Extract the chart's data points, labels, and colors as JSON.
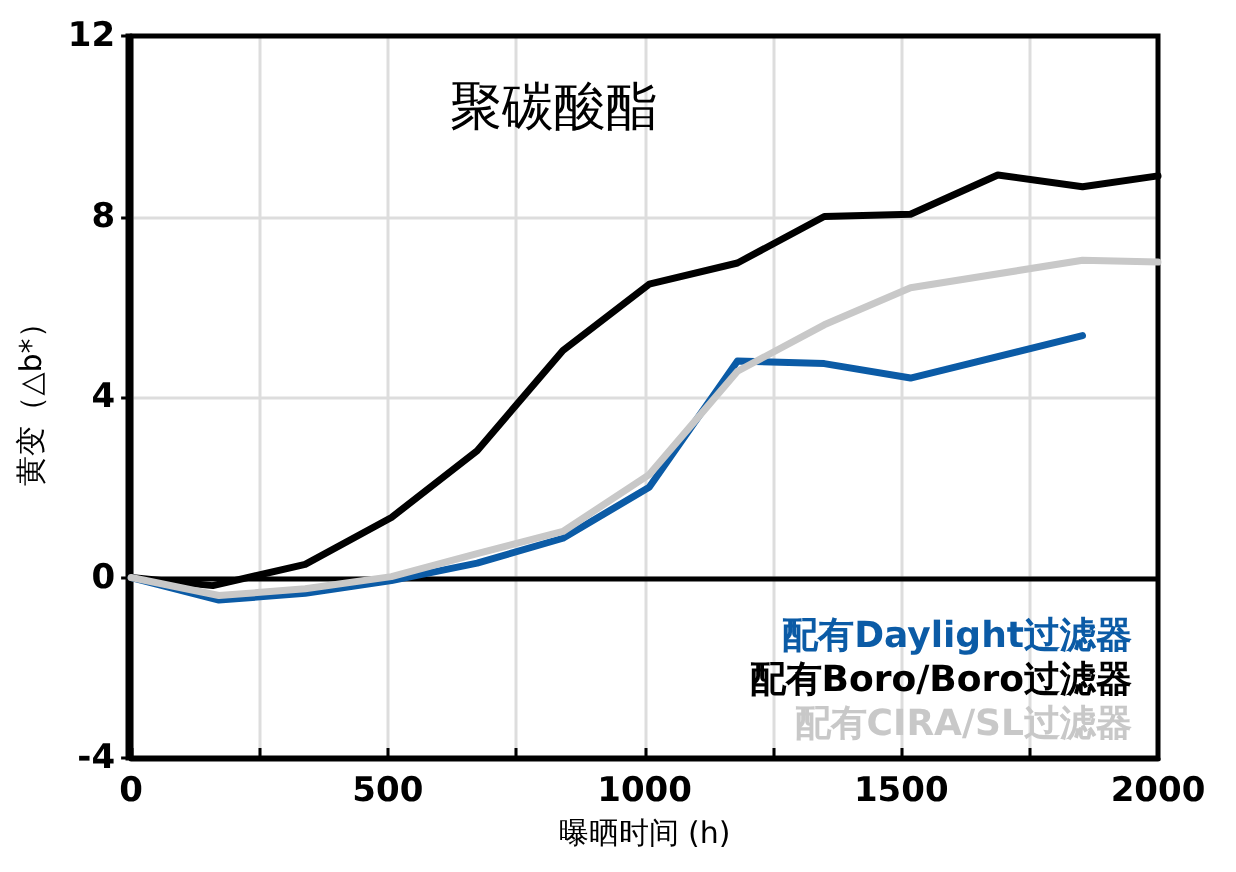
{
  "chart_data": {
    "type": "line",
    "title": "聚碳酸酯",
    "xlabel": "曝晒时间 (h)",
    "ylabel": "黄变（△b*）",
    "xlim": [
      0,
      2000
    ],
    "xticks": [
      0,
      {
        "value": 250,
        "label": null
      },
      500,
      {
        "value": 750,
        "label": null
      },
      1000,
      {
        "value": 1250,
        "label": null
      },
      1500,
      {
        "value": 1750,
        "label": null
      },
      2000
    ],
    "ylim": [
      -4,
      12
    ],
    "yticks": [
      -4,
      0,
      4,
      8,
      12
    ],
    "grid": true,
    "legend": "bottom right",
    "marker": "none",
    "line_style": "solid",
    "ref_lines": [
      {
        "axis": "y",
        "value": 0,
        "color": "#000000"
      }
    ],
    "series": [
      {
        "name": "配有Daylight过滤器",
        "color": "#0b5ba6",
        "x": [
          0,
          171,
          339,
          507,
          674,
          841,
          1009,
          1181,
          1350,
          1518,
          1853
        ],
        "values": [
          0,
          -0.5,
          -0.35,
          -0.07,
          0.32,
          0.87,
          2.0,
          4.8,
          4.74,
          4.42,
          5.36
        ]
      },
      {
        "name": "配有Boro/Boro过滤器",
        "color": "#000000",
        "x": [
          0,
          159,
          339,
          507,
          674,
          841,
          1009,
          1181,
          1350,
          1518,
          1688,
          1853,
          2000
        ],
        "values": [
          0,
          -0.18,
          0.29,
          1.33,
          2.81,
          5.03,
          6.5,
          6.97,
          8.0,
          8.05,
          8.92,
          8.66,
          8.9
        ]
      },
      {
        "name": "配有CIRA/SL过滤器",
        "color": "#c8c8c8",
        "x": [
          0,
          171,
          339,
          507,
          674,
          841,
          1009,
          1181,
          1350,
          1518,
          1853,
          2000
        ],
        "values": [
          0,
          -0.4,
          -0.25,
          0.02,
          0.53,
          1.02,
          2.28,
          4.57,
          5.6,
          6.42,
          7.03,
          6.99
        ]
      }
    ]
  }
}
